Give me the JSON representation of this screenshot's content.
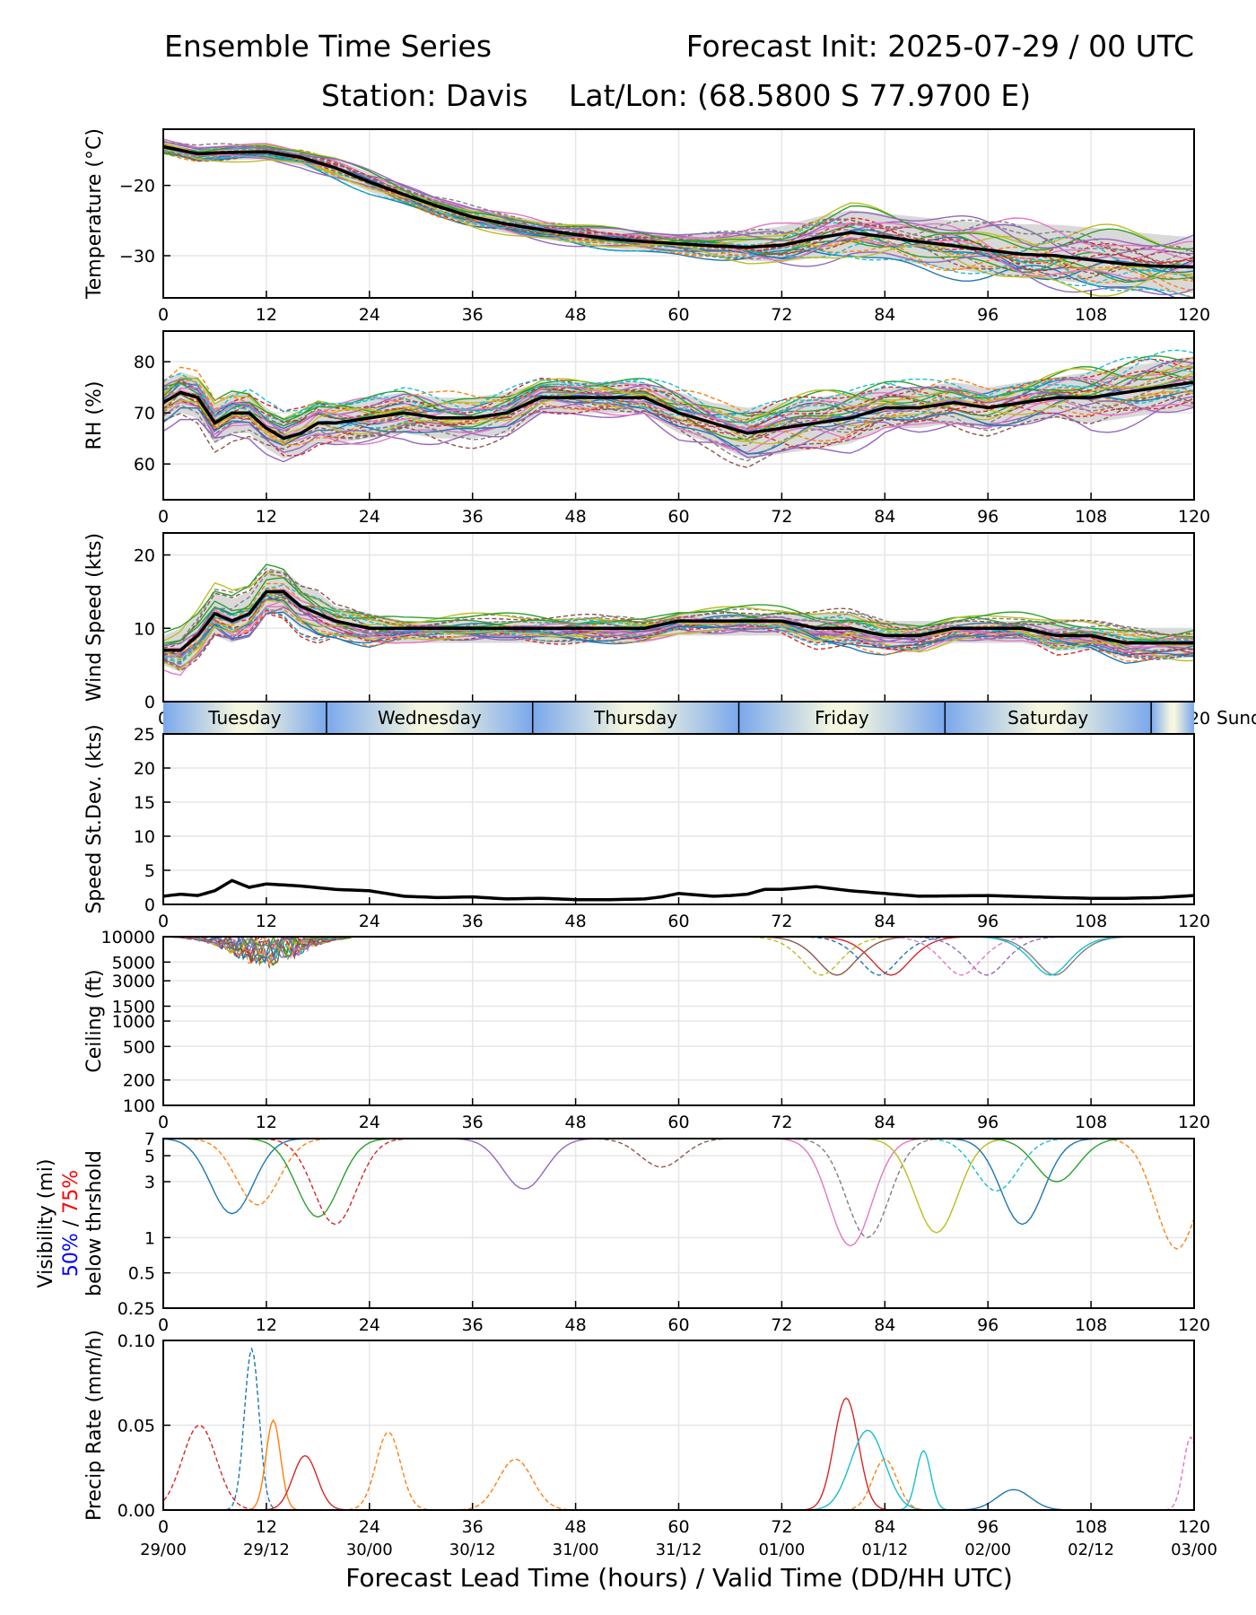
{
  "header": {
    "title_left": "Ensemble Time Series",
    "title_right": "Forecast Init: 2025-07-29 / 00 UTC",
    "station": "Station: Davis",
    "latlon": "Lat/Lon: (68.5800 S 77.9700 E)"
  },
  "x_axis": {
    "xlabel": "Forecast Lead Time (hours) / Valid Time (DD/HH UTC)",
    "range": [
      0,
      120
    ],
    "ticks": [
      0,
      12,
      24,
      36,
      48,
      60,
      72,
      84,
      96,
      108,
      120
    ],
    "valid_times": [
      "29/00",
      "29/12",
      "30/00",
      "30/12",
      "31/00",
      "31/12",
      "01/00",
      "01/12",
      "02/00",
      "02/12",
      "03/00"
    ]
  },
  "day_band": {
    "days": [
      "Tuesday",
      "Wednesday",
      "Thursday",
      "Friday",
      "Saturday",
      "Sunday"
    ],
    "day_boundaries_hours": [
      19,
      43,
      67,
      91,
      115
    ]
  },
  "colors": {
    "ensemble_mean": "#000000",
    "spread_band": "#d9d9d9",
    "members": [
      "#1f77b4",
      "#ff7f0e",
      "#2ca02c",
      "#d62728",
      "#9467bd",
      "#8c564b",
      "#e377c2",
      "#7f7f7f",
      "#bcbd22",
      "#17becf"
    ],
    "vis_label_50": "#0000ff",
    "vis_label_75": "#ff0000"
  },
  "chart_data": [
    {
      "id": "temperature",
      "type": "line",
      "ylabel": "Temperature (°C)",
      "ylim": [
        -36,
        -12
      ],
      "yticks": [
        -20,
        -30
      ],
      "ytick_labels": [
        "−20",
        "−30"
      ],
      "grid": true,
      "mean": {
        "x": [
          0,
          4,
          8,
          12,
          16,
          20,
          24,
          28,
          32,
          36,
          40,
          44,
          48,
          52,
          56,
          60,
          64,
          68,
          72,
          76,
          80,
          84,
          88,
          92,
          96,
          100,
          104,
          108,
          112,
          116,
          120
        ],
        "y": [
          -14.5,
          -15.5,
          -15.3,
          -15.2,
          -16.0,
          -17.5,
          -19.5,
          -21.3,
          -23.0,
          -24.5,
          -25.5,
          -26.3,
          -27.0,
          -27.6,
          -28.0,
          -28.3,
          -28.6,
          -28.8,
          -28.5,
          -27.5,
          -26.7,
          -27.3,
          -28.0,
          -28.6,
          -29.2,
          -29.8,
          -30.0,
          -30.6,
          -31.2,
          -31.5,
          -31.6
        ]
      },
      "spread": {
        "upper": [
          -13.5,
          -14.5,
          -14.3,
          -14.2,
          -15.0,
          -16.3,
          -18.2,
          -20.0,
          -21.7,
          -23.2,
          -24.2,
          -25.0,
          -25.7,
          -26.3,
          -26.6,
          -26.9,
          -26.9,
          -26.5,
          -25.8,
          -24.5,
          -23.5,
          -24.0,
          -24.5,
          -25.0,
          -25.3,
          -25.5,
          -25.6,
          -26.0,
          -26.5,
          -27.0,
          -27.4
        ],
        "lower": [
          -15.5,
          -16.6,
          -16.4,
          -16.3,
          -17.2,
          -18.8,
          -20.9,
          -22.6,
          -24.3,
          -25.8,
          -26.8,
          -27.6,
          -28.3,
          -28.9,
          -29.3,
          -29.6,
          -30.1,
          -30.7,
          -30.9,
          -30.3,
          -29.8,
          -30.4,
          -31.2,
          -31.9,
          -32.6,
          -33.2,
          -33.5,
          -34.0,
          -34.6,
          -35.0,
          -35.3
        ]
      }
    },
    {
      "id": "rh",
      "type": "line",
      "ylabel": "RH (%)",
      "ylim": [
        53,
        86
      ],
      "yticks": [
        60,
        70,
        80
      ],
      "ytick_labels": [
        "60",
        "70",
        "80"
      ],
      "grid": true,
      "mean": {
        "x": [
          0,
          2,
          4,
          6,
          8,
          10,
          12,
          14,
          16,
          18,
          20,
          24,
          28,
          32,
          36,
          40,
          44,
          48,
          52,
          56,
          60,
          64,
          68,
          72,
          76,
          80,
          84,
          88,
          92,
          96,
          100,
          104,
          108,
          112,
          116,
          120
        ],
        "y": [
          72,
          74,
          73,
          68,
          70,
          70,
          67,
          65,
          66,
          68,
          68,
          69,
          70,
          69,
          69,
          70,
          73,
          73,
          73,
          73,
          70,
          68,
          66,
          67,
          68,
          69,
          71,
          71,
          72,
          71,
          72,
          73,
          73,
          74,
          75,
          76
        ]
      },
      "spread": {
        "upper": [
          76,
          78,
          77,
          72,
          74,
          74,
          71,
          69,
          70,
          72,
          72,
          73,
          74,
          73,
          73,
          74,
          76,
          76,
          76,
          76,
          74,
          72,
          71,
          72,
          73,
          74,
          75,
          75,
          76,
          75,
          76,
          77,
          78,
          79,
          80,
          81
        ],
        "lower": [
          68,
          70,
          69,
          64,
          66,
          66,
          63,
          61,
          62,
          64,
          64,
          65,
          66,
          65,
          65,
          66,
          70,
          70,
          70,
          70,
          66,
          64,
          61,
          62,
          63,
          64,
          67,
          67,
          68,
          67,
          68,
          69,
          68,
          69,
          70,
          71
        ]
      }
    },
    {
      "id": "wind_speed",
      "type": "line",
      "ylabel": "Wind Speed (kts)",
      "ylim": [
        0,
        23
      ],
      "yticks": [
        0,
        10,
        20
      ],
      "ytick_labels": [
        "0",
        "10",
        "20"
      ],
      "grid": true,
      "mean": {
        "x": [
          0,
          2,
          4,
          6,
          8,
          10,
          12,
          14,
          16,
          18,
          20,
          24,
          28,
          32,
          36,
          40,
          44,
          48,
          52,
          56,
          60,
          64,
          68,
          72,
          76,
          80,
          84,
          88,
          92,
          96,
          100,
          104,
          108,
          112,
          116,
          120
        ],
        "y": [
          7,
          7,
          9,
          12,
          11,
          12,
          15,
          15,
          13,
          12,
          11,
          10,
          10,
          10,
          10,
          10,
          10,
          10,
          10,
          10,
          11,
          11,
          11,
          11,
          10,
          10,
          9,
          9,
          10,
          10,
          10,
          9,
          9,
          8,
          8,
          8
        ]
      },
      "spread": {
        "upper": [
          9,
          10,
          12,
          15,
          14,
          15,
          18,
          18,
          16,
          15,
          13,
          12,
          11,
          11,
          11,
          11,
          11,
          11,
          11,
          11,
          12,
          12,
          12,
          12,
          12,
          12,
          11,
          11,
          11,
          11,
          11,
          11,
          10,
          10,
          10,
          10
        ],
        "lower": [
          5,
          4,
          6,
          9,
          8,
          9,
          12,
          12,
          10,
          9,
          9,
          8,
          8,
          8,
          8,
          8,
          8,
          8,
          8,
          8,
          9,
          9,
          9,
          9,
          8,
          8,
          7,
          7,
          8,
          8,
          8,
          7,
          7,
          6,
          6,
          6
        ]
      }
    },
    {
      "id": "speed_stdev",
      "type": "line",
      "ylabel": "Speed St.Dev. (kts)",
      "ylim": [
        0,
        25
      ],
      "yticks": [
        0,
        5,
        10,
        15,
        20,
        25
      ],
      "ytick_labels": [
        "0",
        "5",
        "10",
        "15",
        "20",
        "25"
      ],
      "grid": true,
      "mean": {
        "x": [
          0,
          2,
          4,
          6,
          8,
          10,
          12,
          16,
          20,
          24,
          28,
          32,
          36,
          40,
          44,
          48,
          52,
          56,
          58,
          60,
          62,
          64,
          66,
          68,
          70,
          72,
          76,
          80,
          84,
          88,
          96,
          104,
          108,
          112,
          116,
          120
        ],
        "y": [
          1.2,
          1.5,
          1.3,
          2.0,
          3.5,
          2.5,
          3.0,
          2.7,
          2.2,
          2.0,
          1.2,
          1.0,
          1.1,
          0.8,
          0.9,
          0.7,
          0.7,
          0.8,
          1.1,
          1.6,
          1.4,
          1.2,
          1.3,
          1.5,
          2.2,
          2.2,
          2.6,
          2.0,
          1.6,
          1.2,
          1.3,
          1.0,
          0.9,
          0.9,
          1.0,
          1.3
        ]
      }
    },
    {
      "id": "ceiling",
      "type": "line",
      "scale": "log",
      "ylabel": "Ceiling (ft)",
      "ylim": [
        100,
        10000
      ],
      "yticks": [
        100,
        200,
        500,
        1000,
        1500,
        3000,
        5000,
        10000
      ],
      "ytick_labels": [
        "100",
        "200",
        "500",
        "1000",
        "1500",
        "3000",
        "5000",
        "10000"
      ],
      "grid": true
    },
    {
      "id": "visibility",
      "type": "line",
      "scale": "log",
      "ylabel_lines": [
        "Visibility (mi)",
        "50%",
        " / ",
        "75%",
        "below thrshold"
      ],
      "ylim": [
        0.25,
        7
      ],
      "yticks": [
        0.25,
        0.5,
        1,
        3,
        5,
        7
      ],
      "ytick_labels": [
        "0.25",
        "0.5",
        "1",
        "3",
        "5",
        "7"
      ],
      "grid": true
    },
    {
      "id": "precip",
      "type": "line",
      "ylabel": "Precip Rate (mm/h)",
      "ylim": [
        0,
        0.1
      ],
      "yticks": [
        0,
        0.05,
        0.1
      ],
      "ytick_labels": [
        "0.00",
        "0.05",
        "0.10"
      ],
      "grid": true,
      "peaks": [
        {
          "x": 10.3,
          "y": 0.095,
          "color": "#1f77b4"
        },
        {
          "x": 79.5,
          "y": 0.066,
          "color": "#d62728"
        },
        {
          "x": 4.2,
          "y": 0.05,
          "color": "#d62728"
        },
        {
          "x": 12.8,
          "y": 0.053,
          "color": "#ff7f0e"
        },
        {
          "x": 26.2,
          "y": 0.046,
          "color": "#ff7f0e"
        },
        {
          "x": 82.0,
          "y": 0.047,
          "color": "#17becf"
        },
        {
          "x": 119.6,
          "y": 0.043,
          "color": "#e377c2"
        },
        {
          "x": 16.5,
          "y": 0.032,
          "color": "#d62728"
        },
        {
          "x": 41.0,
          "y": 0.03,
          "color": "#ff7f0e"
        },
        {
          "x": 88.5,
          "y": 0.035,
          "color": "#17becf"
        },
        {
          "x": 84.0,
          "y": 0.03,
          "color": "#ff7f0e"
        },
        {
          "x": 99.0,
          "y": 0.012,
          "color": "#1f77b4"
        }
      ]
    }
  ]
}
